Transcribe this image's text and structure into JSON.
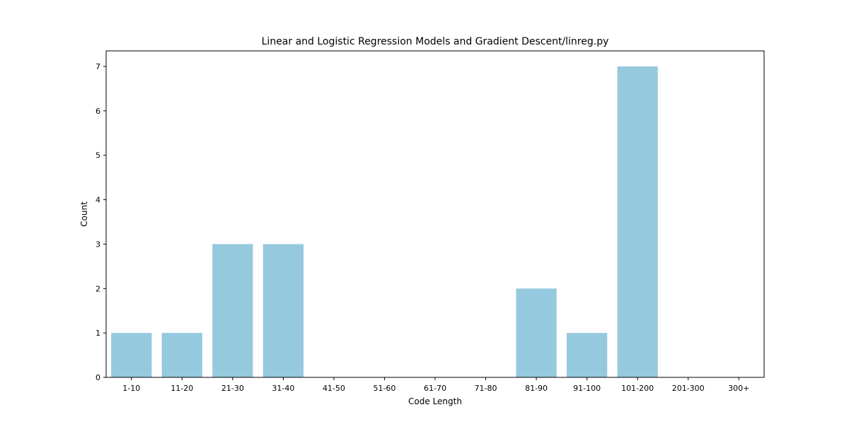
{
  "chart_data": {
    "type": "bar",
    "title": "Linear and Logistic Regression Models and Gradient Descent/linreg.py",
    "xlabel": "Code Length",
    "ylabel": "Count",
    "categories": [
      "1-10",
      "11-20",
      "21-30",
      "31-40",
      "41-50",
      "51-60",
      "61-70",
      "71-80",
      "81-90",
      "91-100",
      "101-200",
      "201-300",
      "300+"
    ],
    "values": [
      1,
      1,
      3,
      3,
      0,
      0,
      0,
      0,
      2,
      1,
      7,
      0,
      0
    ],
    "ylim": [
      0,
      7.35
    ],
    "yticks": [
      0,
      1,
      2,
      3,
      4,
      5,
      6,
      7
    ],
    "bar_color": "#95c9de",
    "grid": false,
    "legend": "none"
  }
}
